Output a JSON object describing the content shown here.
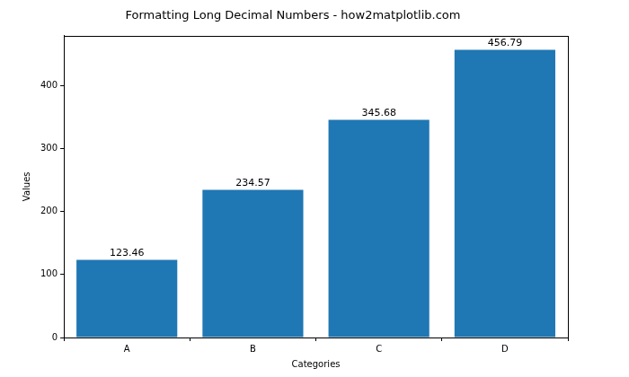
{
  "chart_data": {
    "type": "bar",
    "title": "Formatting Long Decimal Numbers - how2matplotlib.com",
    "x_label": "Categories",
    "y_label": "Values",
    "categories": [
      "A",
      "B",
      "C",
      "D"
    ],
    "values": [
      123.46,
      234.57,
      345.68,
      456.79
    ],
    "color": "#1f77b4",
    "ylim": [
      0,
      479.6
    ],
    "yticks": [
      0,
      100,
      200,
      300,
      400
    ],
    "grid": false,
    "data_labels": true
  }
}
